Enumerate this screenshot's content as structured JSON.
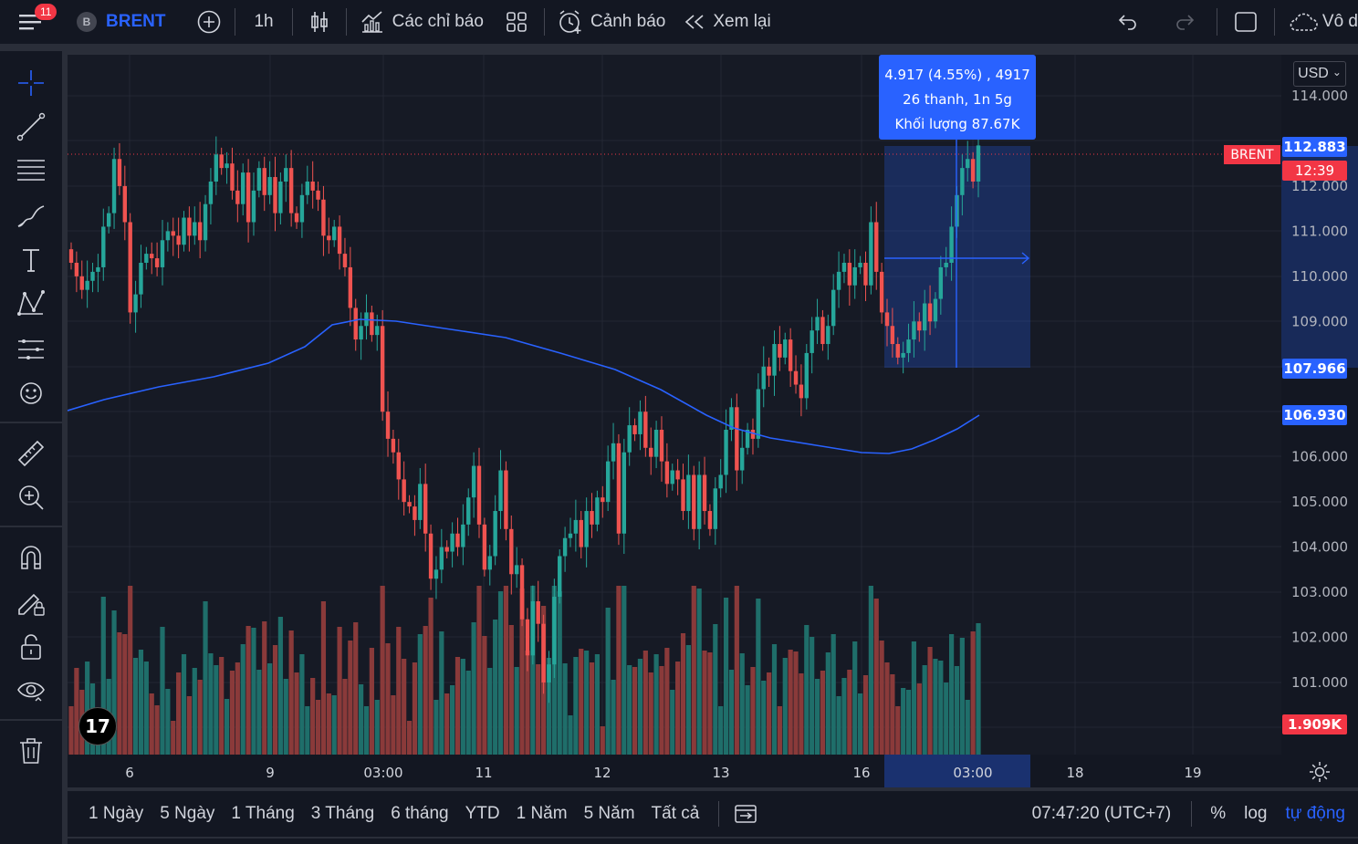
{
  "topbar": {
    "notifications": "11",
    "symbol_letter": "B",
    "symbol": "BRENT",
    "interval": "1h",
    "indicators_label": "Các chỉ báo",
    "alert_label": "Cảnh báo",
    "replay_label": "Xem lại",
    "cut_text": "Vô d"
  },
  "chart": {
    "currency": "USD",
    "currency_caret": "⌄",
    "symbol_tag": "BRENT",
    "price_labels": [
      {
        "value": "112.883",
        "color": "#2962ff"
      },
      {
        "value": "12:39",
        "color": "#f23645"
      },
      {
        "value": "107.966",
        "color": "#2962ff"
      },
      {
        "value": "106.930",
        "color": "#2962ff"
      },
      {
        "value": "1.909K",
        "color": "#f23645"
      }
    ],
    "price_axis": [
      "114.000",
      "112.000",
      "111.000",
      "110.000",
      "109.000",
      "106.000",
      "105.000",
      "104.000",
      "103.000",
      "102.000",
      "101.000"
    ],
    "time_axis": [
      "6",
      "9",
      "03:00",
      "11",
      "12",
      "13",
      "16",
      "03:00",
      "18",
      "19"
    ],
    "tooltip": {
      "line1": "4.917 (4.55%) , 4917",
      "line2": "26 thanh, 1n 5g",
      "line3": "Khối lượng 87.67K"
    },
    "colors": {
      "up": "#26a69a",
      "down": "#ef5350",
      "ma": "#2962ff",
      "up_vol": "#1f6e6a",
      "down_vol": "#8a3a3a"
    },
    "logo_text": "17"
  },
  "bottombar": {
    "ranges": [
      "1 Ngày",
      "5 Ngày",
      "1 Tháng",
      "3 Tháng",
      "6 tháng",
      "YTD",
      "1 Năm",
      "5 Năm",
      "Tất cả"
    ],
    "clock": "07:47:20 (UTC+7)",
    "percent": "%",
    "log": "log",
    "auto": "tự động"
  }
}
